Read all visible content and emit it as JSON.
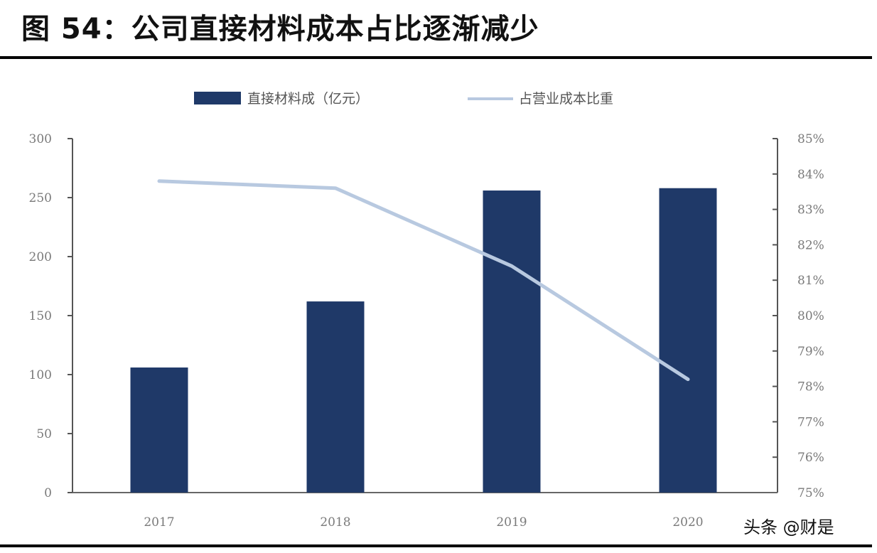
{
  "header": {
    "title": "图 54：公司直接材料成本占比逐渐减少"
  },
  "legend": {
    "bar_label": "直接材料成（亿元）",
    "line_label": "占营业成本比重"
  },
  "watermark": "头条 @财是",
  "colors": {
    "bar": "#1f3968",
    "line": "#b8c9e0",
    "axis": "#555555",
    "tick_text": "#7a7a7a"
  },
  "chart_data": {
    "type": "bar+line",
    "title": "公司直接材料成本占比逐渐减少",
    "categories": [
      "2017",
      "2018",
      "2019",
      "2020"
    ],
    "series": [
      {
        "name": "直接材料成（亿元）",
        "type": "bar",
        "axis": "left",
        "values": [
          106,
          162,
          256,
          258
        ]
      },
      {
        "name": "占营业成本比重",
        "type": "line",
        "axis": "right",
        "values": [
          83.8,
          83.6,
          81.4,
          78.2
        ]
      }
    ],
    "left_axis": {
      "ylim": [
        0,
        300
      ],
      "ticks": [
        "0",
        "50",
        "100",
        "150",
        "200",
        "250",
        "300"
      ]
    },
    "right_axis": {
      "ylim": [
        75,
        85
      ],
      "ticks": [
        "75%",
        "76%",
        "77%",
        "78%",
        "79%",
        "80%",
        "81%",
        "82%",
        "83%",
        "84%",
        "85%"
      ]
    },
    "xlabel": "",
    "ylabel": "",
    "grid": false,
    "legend_position": "top"
  }
}
